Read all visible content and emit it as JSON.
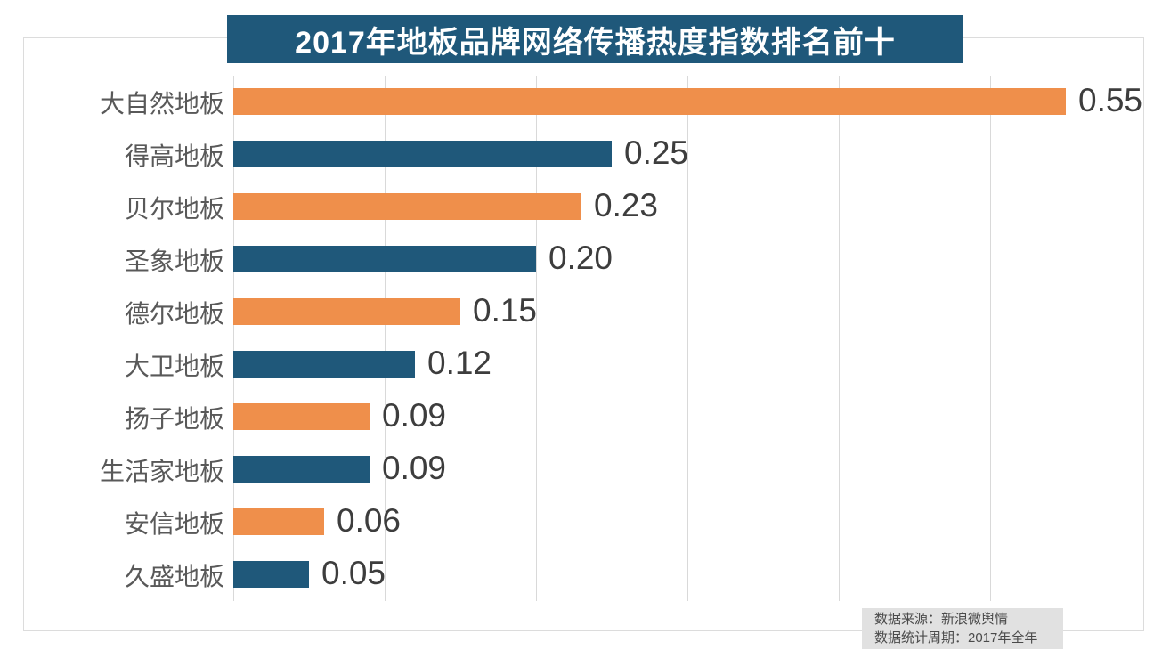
{
  "title": {
    "text": "2017年地板品牌网络传播热度指数排名前十",
    "bg_color": "#1f587a",
    "text_color": "#ffffff"
  },
  "chart_data": {
    "type": "bar",
    "orientation": "horizontal",
    "title": "2017年地板品牌网络传播热度指数排名前十",
    "categories": [
      "大自然地板",
      "得高地板",
      "贝尔地板",
      "圣象地板",
      "德尔地板",
      "大卫地板",
      "扬子地板",
      "生活家地板",
      "安信地板",
      "久盛地板"
    ],
    "values": [
      0.55,
      0.25,
      0.23,
      0.2,
      0.15,
      0.12,
      0.09,
      0.09,
      0.06,
      0.05
    ],
    "value_labels": [
      "0.55",
      "0.25",
      "0.23",
      "0.20",
      "0.15",
      "0.12",
      "0.09",
      "0.09",
      "0.06",
      "0.05"
    ],
    "xlim": [
      0,
      0.6
    ],
    "gridline_step": 0.1,
    "grid": true,
    "legend": "none",
    "bar_colors_alternating": [
      "#ef8f4b",
      "#1f587a"
    ]
  },
  "colors": {
    "orange_bar": "#ef8f4b",
    "blue_bar": "#1f587a",
    "gridline": "#d9d9d9",
    "outer_border": "#dcdcdc",
    "category_label": "#595959",
    "value_label": "#3d3d3d",
    "footer_bg": "#e1e1e1",
    "footer_text": "#4a4a4a"
  },
  "footer": {
    "source_line": "数据来源：新浪微舆情",
    "period_line": "数据统计周期：2017年全年"
  }
}
